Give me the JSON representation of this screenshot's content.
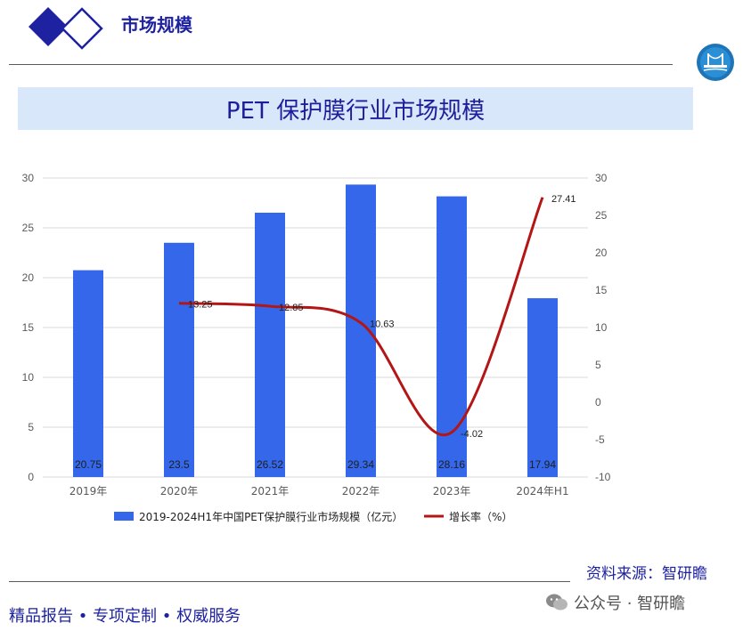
{
  "header": {
    "title": "市场规模"
  },
  "chart_title": "PET 保护膜行业市场规模",
  "colors": {
    "bar": "#3567ea",
    "line": "#b41515",
    "header_text": "#1e22a0",
    "title_band": "#d9e7fb"
  },
  "icons": {
    "logo": "double-diamond-logo-icon",
    "emblem": "bridge-emblem-icon",
    "wechat": "wechat-icon"
  },
  "chart_data": {
    "type": "bar+line",
    "title": "PET 保护膜行业市场规模",
    "categories": [
      "2019年",
      "2020年",
      "2021年",
      "2022年",
      "2023年",
      "2024年H1"
    ],
    "series": [
      {
        "name": "2019-2024H1年中国PET保护膜行业市场规模（亿元）",
        "type": "bar",
        "axis": "left",
        "values": [
          20.75,
          23.5,
          26.52,
          29.34,
          28.16,
          17.94
        ],
        "labels": [
          "20.75",
          "23.5",
          "26.52",
          "29.34",
          "28.16",
          "17.94"
        ]
      },
      {
        "name": "增长率（%）",
        "type": "line",
        "axis": "right",
        "values": [
          null,
          13.25,
          12.85,
          10.63,
          -4.02,
          27.41
        ],
        "labels": [
          "",
          "13.25",
          "12.85",
          "10.63",
          "-4.02",
          "27.41"
        ]
      }
    ],
    "y_left": {
      "min": 0,
      "max": 30,
      "ticks": [
        "0",
        "5",
        "10",
        "15",
        "20",
        "25",
        "30"
      ]
    },
    "y_right": {
      "min": -10,
      "max": 30,
      "ticks": [
        "-10",
        "-5",
        "0",
        "5",
        "10",
        "15",
        "20",
        "25",
        "30"
      ]
    },
    "grid": true,
    "legend_position": "bottom"
  },
  "footer": {
    "source": "资料来源：智研瞻",
    "tagline": "精品报告 • 专项定制 • 权威服务",
    "wechat_label": "公众号 · 智研瞻"
  }
}
